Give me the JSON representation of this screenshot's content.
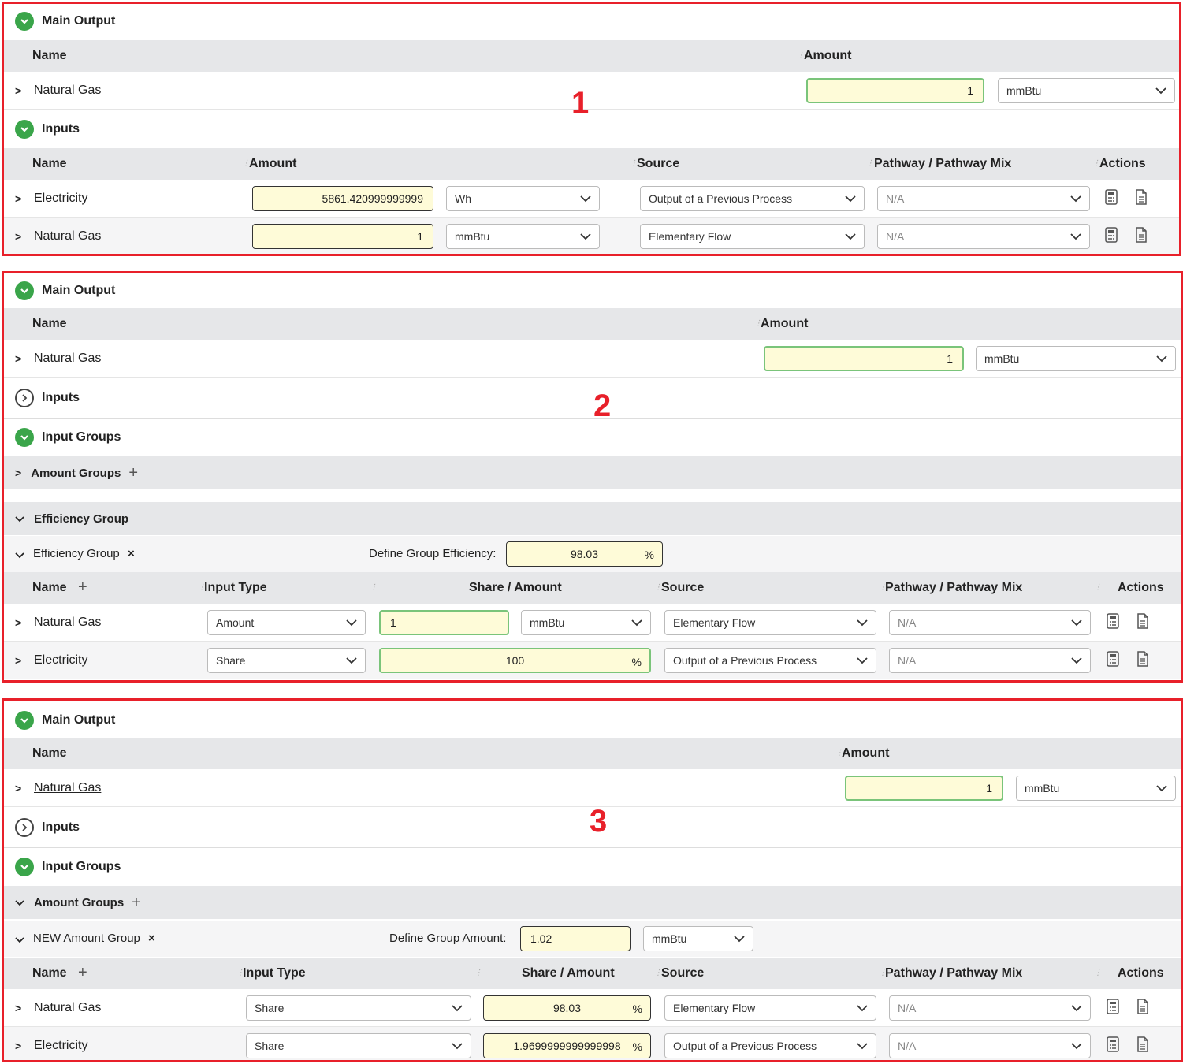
{
  "labels": {
    "main_output": "Main Output",
    "inputs": "Inputs",
    "input_groups": "Input Groups",
    "name": "Name",
    "amount": "Amount",
    "source": "Source",
    "pathway": "Pathway / Pathway Mix",
    "actions": "Actions",
    "input_type": "Input Type",
    "share_amount": "Share / Amount",
    "amount_groups": "Amount Groups",
    "efficiency_group": "Efficiency Group",
    "define_efficiency": "Define Group Efficiency:",
    "define_amount": "Define Group Amount:",
    "pct": "%",
    "na": "N/A"
  },
  "panel1": {
    "number": "1",
    "main": {
      "name": "Natural Gas",
      "amount": "1",
      "unit": "mmBtu"
    },
    "inputs": [
      {
        "name": "Electricity",
        "amount": "5861.420999999999",
        "unit": "Wh",
        "source": "Output of a Previous Process",
        "pathway": "N/A"
      },
      {
        "name": "Natural Gas",
        "amount": "1",
        "unit": "mmBtu",
        "source": "Elementary Flow",
        "pathway": "N/A"
      }
    ]
  },
  "panel2": {
    "number": "2",
    "main": {
      "name": "Natural Gas",
      "amount": "1",
      "unit": "mmBtu"
    },
    "group_name": "Efficiency Group",
    "group_value": "98.03",
    "rows": [
      {
        "name": "Natural Gas",
        "input_type": "Amount",
        "value": "1",
        "unit": "mmBtu",
        "source": "Elementary Flow",
        "pathway": "N/A"
      },
      {
        "name": "Electricity",
        "input_type": "Share",
        "value": "100",
        "source": "Output of a Previous Process",
        "pathway": "N/A"
      }
    ]
  },
  "panel3": {
    "number": "3",
    "main": {
      "name": "Natural Gas",
      "amount": "1",
      "unit": "mmBtu"
    },
    "group_name": "NEW Amount Group",
    "group_value": "1.02",
    "group_unit": "mmBtu",
    "rows": [
      {
        "name": "Natural Gas",
        "input_type": "Share",
        "value": "98.03",
        "source": "Elementary Flow",
        "pathway": "N/A"
      },
      {
        "name": "Electricity",
        "input_type": "Share",
        "value": "1.9699999999999998",
        "source": "Output of a Previous Process",
        "pathway": "N/A"
      }
    ]
  }
}
